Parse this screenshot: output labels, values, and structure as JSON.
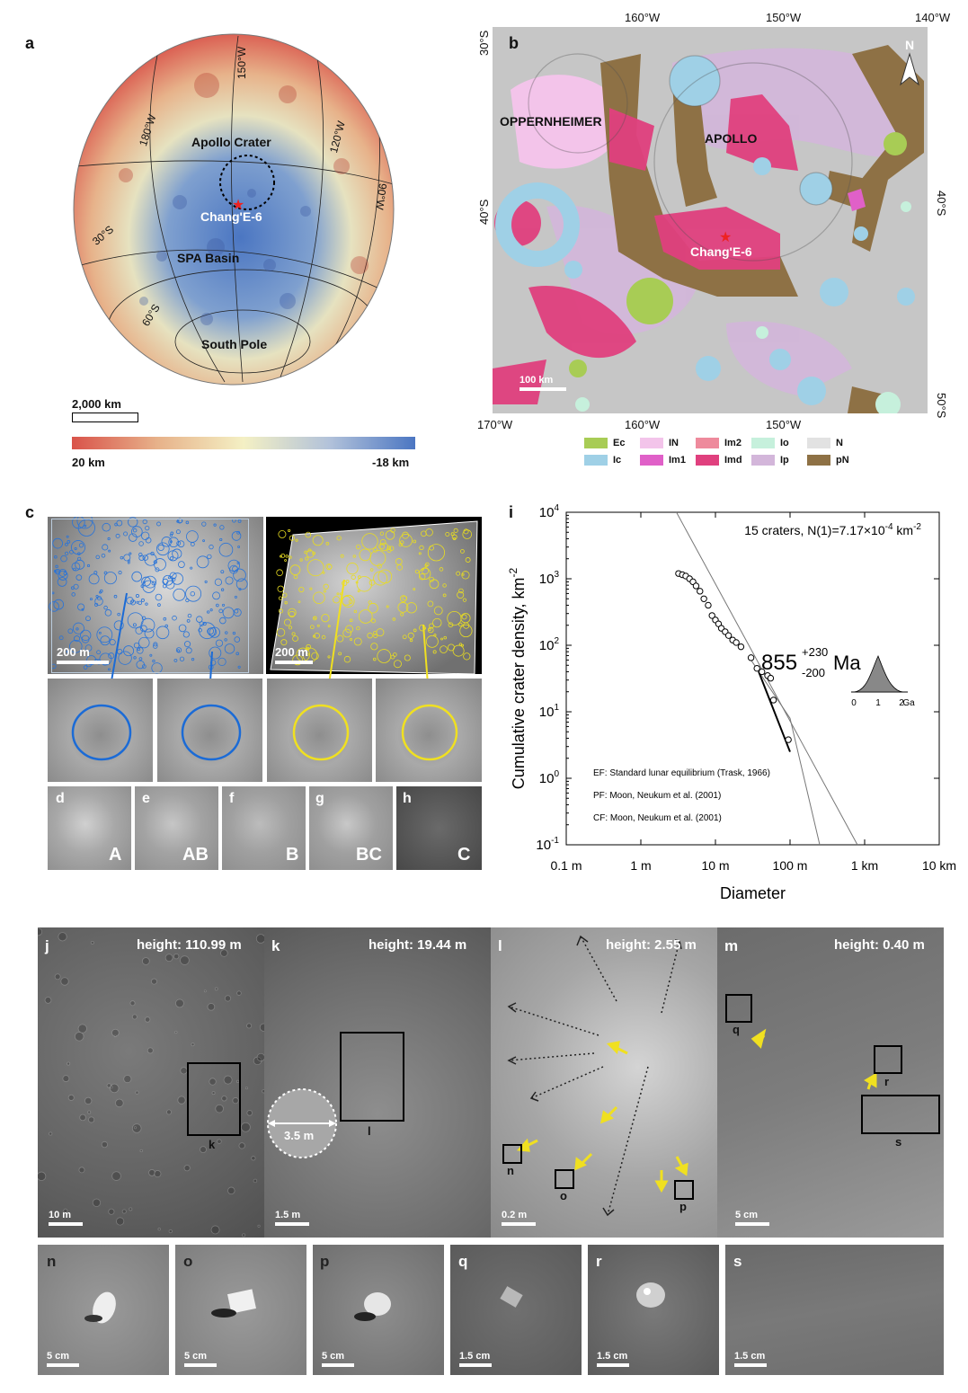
{
  "panel_letters": {
    "a": "a",
    "b": "b",
    "c": "c",
    "d": "d",
    "e": "e",
    "f": "f",
    "g": "g",
    "h": "h",
    "i": "i",
    "j": "j",
    "k": "k",
    "l": "l",
    "m": "m",
    "n": "n",
    "o": "o",
    "p": "p",
    "q": "q",
    "r": "r",
    "s": "s"
  },
  "panel_a": {
    "labels": {
      "apollo": "Apollo Crater",
      "change": "Chang'E-6",
      "spa": "SPA Basin",
      "south": "South Pole"
    },
    "grid_labels": {
      "w150": "150°W",
      "w180": "180°W",
      "w120": "120°W",
      "w90": "90°W",
      "s30": "30°S",
      "s60": "60°S"
    },
    "scalebar": "2,000 km",
    "colorbar": {
      "high": "20 km",
      "low": "-18 km"
    },
    "colors": {
      "high": "#d9534a",
      "mid": "#f4f0c4",
      "low": "#4b76c2"
    }
  },
  "panel_b": {
    "labels": {
      "oppenheimer": "OPPERNHEIMER",
      "apollo": "APOLLO",
      "change": "Chang'E-6"
    },
    "top_ticks": [
      "160°W",
      "150°W",
      "140°W"
    ],
    "bottom_ticks": [
      "170°W",
      "160°W",
      "150°W"
    ],
    "left_ticks": [
      "30°S",
      "40°S"
    ],
    "right_ticks": [
      "40°S",
      "50°S"
    ],
    "north": "N",
    "scalebar": "100 km",
    "legend": [
      {
        "code": "Ec",
        "color": "#a8cc55"
      },
      {
        "code": "Ic",
        "color": "#9fd0e6"
      },
      {
        "code": "IN",
        "color": "#f3c4ea"
      },
      {
        "code": "Im1",
        "color": "#e060c8"
      },
      {
        "code": "Im2",
        "color": "#ee8a9c"
      },
      {
        "code": "Imd",
        "color": "#e0407e"
      },
      {
        "code": "Io",
        "color": "#c6f0dc"
      },
      {
        "code": "Ip",
        "color": "#d3b6da"
      },
      {
        "code": "N",
        "color": "#e2e2e2"
      },
      {
        "code": "pN",
        "color": "#8e7145"
      }
    ]
  },
  "panel_c": {
    "scale_left": "200 m",
    "scale_right": "200 m"
  },
  "panel_dh": {
    "classes": [
      "A",
      "AB",
      "B",
      "BC",
      "C"
    ]
  },
  "chart_data": {
    "type": "scatter",
    "xlabel": "Diameter",
    "ylabel": "Cumulative crater density, km",
    "ylabel_sup": "-2",
    "log_x": true,
    "log_y": true,
    "xlim": [
      0.1,
      10000
    ],
    "ylim": [
      0.1,
      10000
    ],
    "x_ticks": [
      {
        "v": 0.1,
        "t": "0.1 m"
      },
      {
        "v": 1,
        "t": "1 m"
      },
      {
        "v": 10,
        "t": "10 m"
      },
      {
        "v": 100,
        "t": "100 m"
      },
      {
        "v": 1000,
        "t": "1 km"
      },
      {
        "v": 10000,
        "t": "10 km"
      }
    ],
    "y_ticks": [
      {
        "v": 0.1,
        "b": "10",
        "e": "-1"
      },
      {
        "v": 1,
        "b": "10",
        "e": "0"
      },
      {
        "v": 10,
        "b": "10",
        "e": "1"
      },
      {
        "v": 100,
        "b": "10",
        "e": "2"
      },
      {
        "v": 1000,
        "b": "10",
        "e": "3"
      },
      {
        "v": 10000,
        "b": "10",
        "e": "4"
      }
    ],
    "annotation": "15 craters, N(1)=7.17×10",
    "annotation_exp": "-4",
    "annotation_unit": " km",
    "annotation_unit_exp": "-2",
    "age": {
      "value": "855",
      "plus": "+230",
      "minus": "-200",
      "unit": "Ma"
    },
    "age_axis": [
      "0",
      "1",
      "2",
      "Ga"
    ],
    "functions": [
      "EF: Standard lunar equilibrium (Trask, 1966)",
      "PF: Moon, Neukum et al. (2001)",
      "CF: Moon, Neukum et al. (2001)"
    ],
    "points": [
      {
        "x": 3.2,
        "y": 1200
      },
      {
        "x": 3.6,
        "y": 1150
      },
      {
        "x": 4.0,
        "y": 1100
      },
      {
        "x": 4.5,
        "y": 1000
      },
      {
        "x": 5.0,
        "y": 900
      },
      {
        "x": 5.5,
        "y": 780
      },
      {
        "x": 6.2,
        "y": 650
      },
      {
        "x": 7.0,
        "y": 500
      },
      {
        "x": 8.0,
        "y": 400
      },
      {
        "x": 9.0,
        "y": 280
      },
      {
        "x": 10.0,
        "y": 240
      },
      {
        "x": 11.0,
        "y": 210
      },
      {
        "x": 12.0,
        "y": 180
      },
      {
        "x": 13.5,
        "y": 160
      },
      {
        "x": 15.0,
        "y": 140
      },
      {
        "x": 17.0,
        "y": 120
      },
      {
        "x": 19.0,
        "y": 110
      },
      {
        "x": 22.0,
        "y": 95
      },
      {
        "x": 30.0,
        "y": 65
      },
      {
        "x": 36.0,
        "y": 45
      },
      {
        "x": 42.0,
        "y": 40
      },
      {
        "x": 50.0,
        "y": 35
      },
      {
        "x": 55.0,
        "y": 32
      },
      {
        "x": 60.0,
        "y": 15
      },
      {
        "x": 95.0,
        "y": 3.8
      }
    ],
    "fit_segment": [
      {
        "x": 38,
        "y": 40
      },
      {
        "x": 100,
        "y": 2.5
      }
    ],
    "lines": [
      {
        "name": "EF",
        "pts": [
          {
            "x": 3.0,
            "y": 10000
          },
          {
            "x": 800,
            "y": 0.1
          }
        ]
      },
      {
        "name": "PF",
        "pts": [
          {
            "x": 30,
            "y": 60
          },
          {
            "x": 100,
            "y": 8
          },
          {
            "x": 250,
            "y": 0.1
          }
        ]
      }
    ]
  },
  "panel_jm": {
    "j": {
      "height": "height: 110.99 m",
      "scale": "10 m",
      "box": "k"
    },
    "k": {
      "height": "height: 19.44 m",
      "scale": "1.5 m",
      "box": "l",
      "crater": "3.5 m"
    },
    "l": {
      "height": "height: 2.55 m",
      "scale": "0.2 m",
      "boxes": [
        "n",
        "o",
        "p"
      ]
    },
    "m": {
      "height": "height: 0.40 m",
      "scale": "5 cm",
      "boxes": [
        "q",
        "r",
        "s"
      ]
    }
  },
  "panel_ns": {
    "n": "5 cm",
    "o": "5 cm",
    "p": "5 cm",
    "q": "1.5 cm",
    "r": "1.5 cm",
    "s": "1.5 cm"
  }
}
